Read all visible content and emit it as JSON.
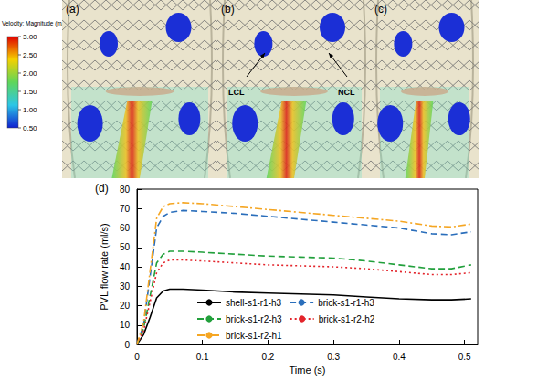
{
  "panels": [
    {
      "label": "(a)"
    },
    {
      "label": "(b)",
      "annotations": [
        "LCL",
        "NCL"
      ]
    },
    {
      "label": "(c)"
    }
  ],
  "colorbar": {
    "title": "Velocity: Magnitude (m/s)",
    "range": [
      0.5,
      3.0
    ],
    "ticks": [
      {
        "value": 3,
        "label": "3.00"
      },
      {
        "value": 2.5,
        "label": "2.50"
      },
      {
        "value": 2,
        "label": "2.00"
      },
      {
        "value": 1.5,
        "label": "1.50"
      },
      {
        "value": 1,
        "label": "1.00"
      },
      {
        "value": 0.5,
        "label": "0.50"
      }
    ]
  },
  "chart_data": {
    "type": "line",
    "title": "(d)",
    "xlabel": "Time (s)",
    "ylabel": "PVL flow rate (ml/s)",
    "x": [
      0,
      0.01,
      0.02,
      0.03,
      0.04,
      0.05,
      0.07,
      0.1,
      0.15,
      0.2,
      0.25,
      0.3,
      0.35,
      0.4,
      0.45,
      0.48,
      0.51
    ],
    "series": [
      {
        "name": "shell-s1-r1-h3",
        "color": "#000000",
        "line_style": "solid",
        "values": [
          0,
          5,
          14,
          24,
          27.5,
          28.5,
          28.5,
          28,
          27,
          26.5,
          26,
          25.5,
          24.5,
          23.5,
          23,
          23,
          23.5
        ]
      },
      {
        "name": "brick-s1-r1-h3",
        "color": "#2a6ebb",
        "line_style": "dashed",
        "values": [
          0,
          10,
          35,
          60,
          66,
          68,
          69,
          68.5,
          67.5,
          66,
          64.5,
          63,
          61.5,
          60,
          57,
          56.5,
          58
        ]
      },
      {
        "name": "brick-s1-r2-h3",
        "color": "#22a03c",
        "line_style": "dashed",
        "values": [
          0,
          8,
          25,
          42,
          46.5,
          48,
          48,
          47.5,
          46.5,
          45.5,
          45,
          44.5,
          43,
          41,
          39,
          39,
          41
        ]
      },
      {
        "name": "brick-s1-r2-h2",
        "color": "#e3242b",
        "line_style": "dotted",
        "values": [
          0,
          7,
          22,
          37,
          42,
          43.5,
          43.5,
          43,
          42,
          41,
          40.5,
          40,
          39,
          37.5,
          36,
          36,
          37
        ]
      },
      {
        "name": "brick-s1-r2-h1",
        "color": "#f5a623",
        "line_style": "dashdot",
        "values": [
          0,
          11,
          38,
          65,
          71,
          72.5,
          73,
          72.5,
          71,
          69.5,
          68,
          66.5,
          65,
          63.5,
          61,
          60.5,
          62
        ]
      }
    ],
    "xlim": [
      0,
      0.52
    ],
    "xticks": [
      0,
      0.1,
      0.2,
      0.3,
      0.4,
      0.5
    ],
    "ylim": [
      0,
      80
    ],
    "yticks": [
      0,
      10,
      20,
      30,
      40,
      50,
      60,
      70,
      80
    ],
    "grid": false,
    "legend": "bottom"
  }
}
